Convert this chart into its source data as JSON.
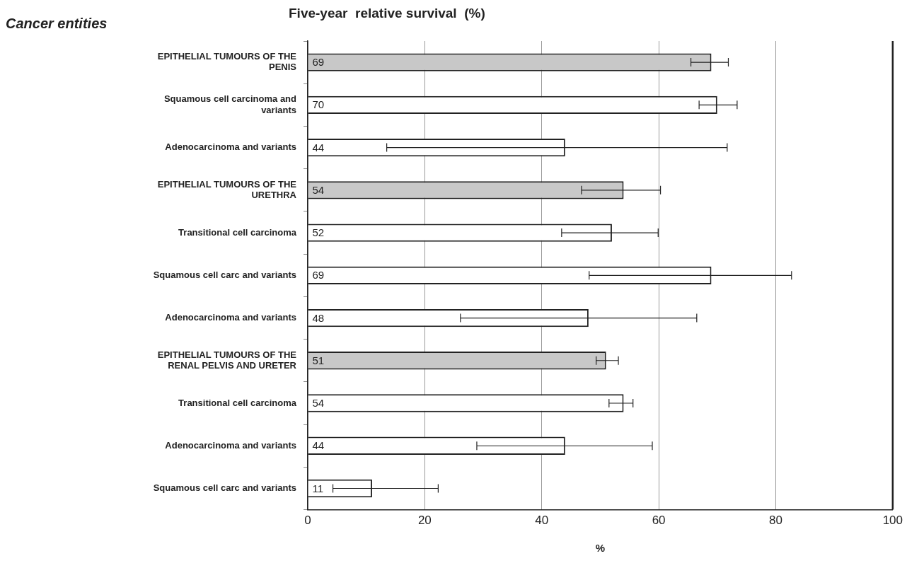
{
  "chart_data": {
    "type": "bar",
    "orientation": "horizontal",
    "title": "Five-year  relative survival  (%)",
    "annotations": [
      "Cancer entities"
    ],
    "xlabel": "%",
    "categories": [
      "EPITHELIAL TUMOURS OF THE PENIS",
      "Squamous cell carcinoma and variants",
      "Adenocarcinoma and variants",
      "EPITHELIAL TUMOURS OF THE URETHRA",
      "Transitional cell carcinoma",
      "Squamous cell carc and variants",
      "Adenocarcinoma and variants",
      "EPITHELIAL TUMOURS OF THE RENAL PELVIS AND URETER",
      "Transitional cell carcinoma",
      "Adenocarcinoma and variants",
      "Squamous cell carc and variants"
    ],
    "values": [
      69,
      70,
      44,
      54,
      52,
      69,
      48,
      51,
      54,
      44,
      11
    ],
    "colors": [
      "#c8c8c8",
      "#ffffff",
      "#ffffff",
      "#c8c8c8",
      "#ffffff",
      "#ffffff",
      "#ffffff",
      "#c8c8c8",
      "#ffffff",
      "#ffffff",
      "#ffffff"
    ],
    "errors": [
      [
        65.5,
        71.9
      ],
      [
        66.9,
        73.4
      ],
      [
        13.5,
        71.7
      ],
      [
        46.8,
        60.3
      ],
      [
        43.4,
        59.9
      ],
      [
        48.1,
        82.7
      ],
      [
        26.1,
        66.5
      ],
      [
        49.3,
        53.1
      ],
      [
        51.5,
        55.6
      ],
      [
        28.9,
        58.9
      ],
      [
        4.3,
        22.3
      ]
    ],
    "data_labels": true,
    "xlim": [
      0,
      100
    ],
    "xticks": [
      0,
      20,
      40,
      60,
      80,
      100
    ],
    "grid": "x",
    "legend": false
  }
}
